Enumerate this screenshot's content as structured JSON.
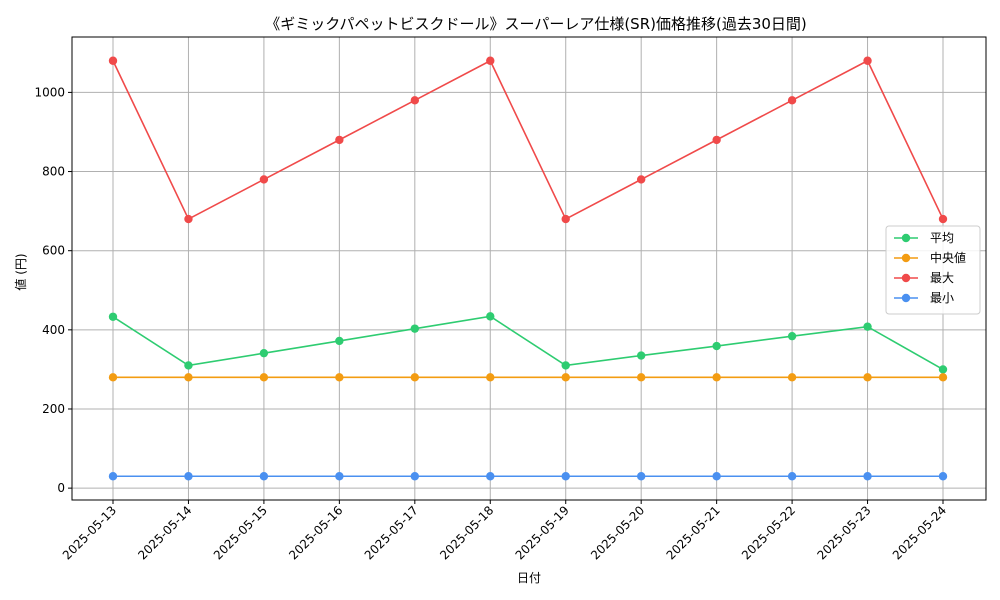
{
  "chart_data": {
    "type": "line",
    "title": "《ギミックパペットビスクドール》スーパーレア仕様(SR)価格推移(過去30日間)",
    "xlabel": "日付",
    "ylabel": "値 (円)",
    "categories": [
      "2025-05-13",
      "2025-05-14",
      "2025-05-15",
      "2025-05-16",
      "2025-05-17",
      "2025-05-18",
      "2025-05-19",
      "2025-05-20",
      "2025-05-21",
      "2025-05-22",
      "2025-05-23",
      "2025-05-24"
    ],
    "ylim": [
      -30,
      1140
    ],
    "yticks": [
      0,
      200,
      400,
      600,
      800,
      1000
    ],
    "grid": true,
    "legend_position": "center-right",
    "series": [
      {
        "name": "平均",
        "color": "#2ecc71",
        "values": [
          433,
          310,
          341,
          372,
          403,
          434,
          310,
          335,
          359,
          384,
          408,
          300
        ]
      },
      {
        "name": "中央値",
        "color": "#f39c12",
        "values": [
          280,
          280,
          280,
          280,
          280,
          280,
          280,
          280,
          280,
          280,
          280,
          280
        ]
      },
      {
        "name": "最大",
        "color": "#f04a4a",
        "values": [
          1080,
          680,
          780,
          880,
          980,
          1080,
          680,
          780,
          880,
          980,
          1080,
          680
        ]
      },
      {
        "name": "最小",
        "color": "#4a90f0",
        "values": [
          30,
          30,
          30,
          30,
          30,
          30,
          30,
          30,
          30,
          30,
          30,
          30
        ]
      }
    ]
  }
}
